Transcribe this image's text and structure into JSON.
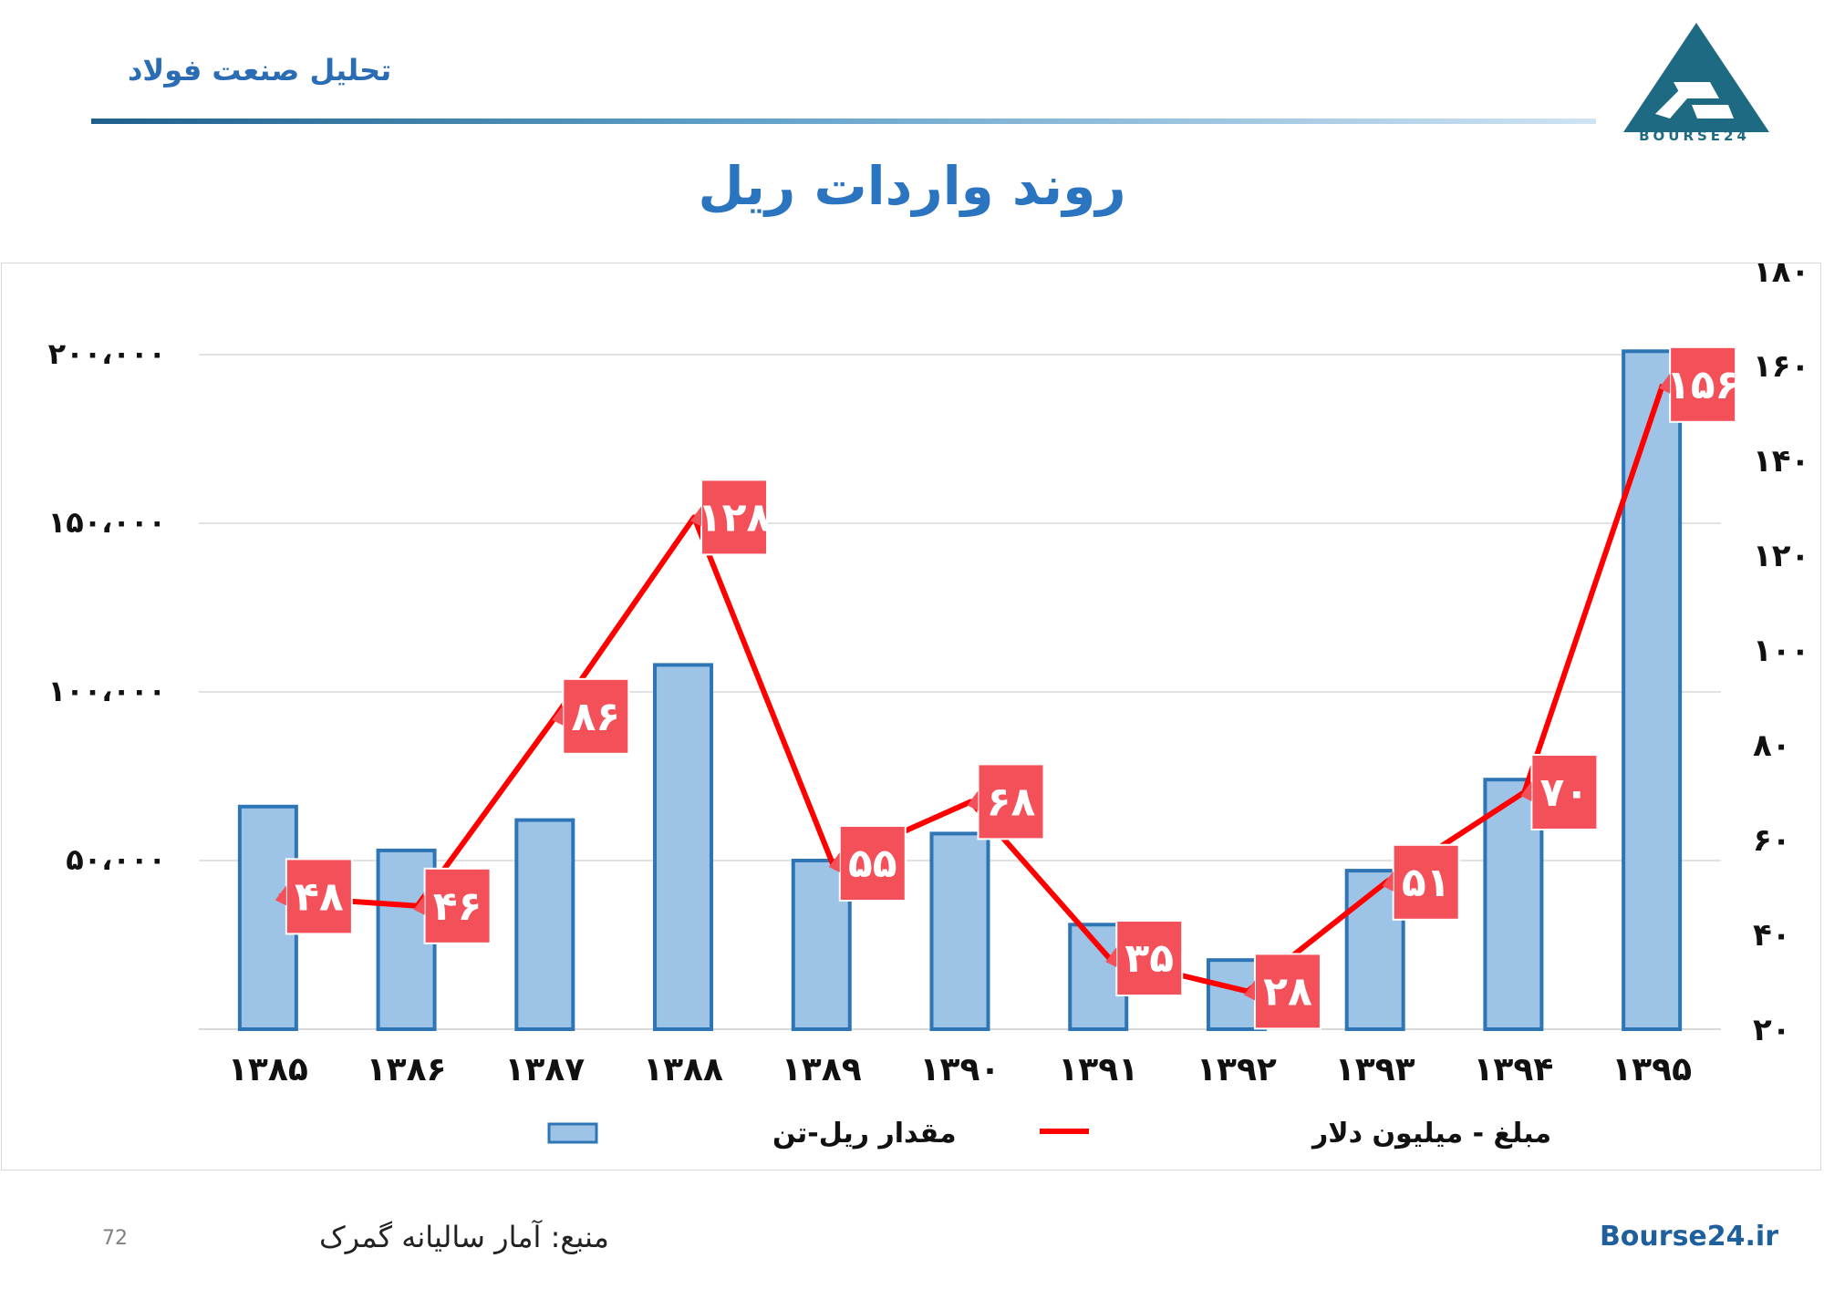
{
  "header": {
    "series_title": "تحلیل صنعت فولاد",
    "logo_text": "BOURSE24"
  },
  "slide_title": "روند واردات ریل",
  "colors": {
    "bar_fill": "#9dc3e6",
    "bar_stroke": "#2e75b6",
    "line": "#ff0000",
    "label_bg": "#f4505a",
    "title": "#2a74c0"
  },
  "chart_data": {
    "type": "bar",
    "categories": [
      "۱۳۸۵",
      "۱۳۸۶",
      "۱۳۸۷",
      "۱۳۸۸",
      "۱۳۸۹",
      "۱۳۹۰",
      "۱۳۹۱",
      "۱۳۹۲",
      "۱۳۹۳",
      "۱۳۹۴",
      "۱۳۹۵"
    ],
    "series": [
      {
        "name": "مقدار ریل-تن",
        "type": "bar",
        "axis": "left",
        "values": [
          66000,
          53000,
          62000,
          108000,
          50000,
          58000,
          31000,
          20500,
          47000,
          74000,
          201000
        ]
      },
      {
        "name": "مبلغ - میلیون دلار",
        "type": "line",
        "axis": "right",
        "values": [
          48,
          46,
          86,
          128,
          55,
          68,
          35,
          28,
          51,
          70,
          156
        ],
        "data_labels": [
          "۴۸",
          "۴۶",
          "۸۶",
          "۱۲۸",
          "۵۵",
          "۶۸",
          "۳۵",
          "۲۸",
          "۵۱",
          "۷۰",
          "۱۵۶"
        ]
      }
    ],
    "y_left": {
      "ylim": [
        0,
        200000
      ],
      "ticks": [
        50000,
        100000,
        150000,
        200000
      ],
      "tick_labels": [
        "۵۰،۰۰۰",
        "۱۰۰،۰۰۰",
        "۱۵۰،۰۰۰",
        "۲۰۰،۰۰۰"
      ]
    },
    "y_right": {
      "ylim": [
        20,
        180
      ],
      "ticks": [
        20,
        40,
        60,
        80,
        100,
        120,
        140,
        160,
        180
      ],
      "tick_labels": [
        "۲۰",
        "۴۰",
        "۶۰",
        "۸۰",
        "۱۰۰",
        "۱۲۰",
        "۱۴۰",
        "۱۶۰",
        "۱۸۰"
      ]
    },
    "grid": true,
    "legend_position": "bottom"
  },
  "footer": {
    "page_number": "72",
    "source": "منبع: آمار سالیانه گمرک",
    "site": "Bourse24.ir"
  }
}
